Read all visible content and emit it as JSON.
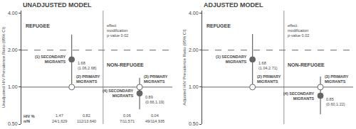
{
  "chart_data": [
    {
      "type": "scatter",
      "title": "UNADJUSTED MODEL",
      "y_label": "Unadjusted HIV Prevalence Ratio (95% CI)",
      "log": "y",
      "ylim": [
        0.5,
        4.2
      ],
      "yticks": [
        {
          "value": 0.5,
          "label": "0.50"
        },
        {
          "value": 1.0,
          "label": "1.00"
        },
        {
          "value": 2.0,
          "label": "2.00"
        },
        {
          "value": 4.0,
          "label": "4.00"
        }
      ],
      "tick_labels": "y",
      "grid": false,
      "color": "#666666",
      "reference_lines": [
        {
          "value": 1.0,
          "line_style": "solid"
        },
        {
          "value": 2.0,
          "line_style": "dashed"
        }
      ],
      "groups": [
        {
          "label": "REFUGEE",
          "points": [
            {
              "label": "(1) SECONDARY\nMIGRANTS",
              "value": 1.68,
              "value_label": "1.68\n(1.06,2.68)",
              "ci_low": 1.06,
              "ci_high": 2.68,
              "marker": "filled",
              "color": "#666666",
              "hiv_percent": 1.47,
              "hiv_n_over_N": "24/1,629"
            },
            {
              "label": "(2) PRIMARY\nMIGRANTS",
              "value": 1.0,
              "ci_low": null,
              "ci_high": null,
              "marker": "open",
              "color": "#ffffff",
              "hiv_percent": 0.82,
              "hiv_n_over_N": "112/13,640"
            }
          ]
        },
        {
          "label": "NON-REFUGEE",
          "points": [
            {
              "label": "(4) SECONDARY\nMIGRANTS",
              "value": 0.89,
              "value_label": "0.89\n(0.66,1.19)",
              "ci_low": 0.66,
              "ci_high": 1.19,
              "marker": "filled",
              "color": "#666666",
              "hiv_percent": 0.06,
              "hiv_n_over_N": "7/11,571"
            },
            {
              "label": "(3) PRIMARY\nMIGRANTS",
              "value": 1.0,
              "ci_low": null,
              "ci_high": null,
              "marker": "open",
              "color": "#ffffff",
              "hiv_percent": 0.04,
              "hiv_n_over_N": "49/114,935"
            }
          ]
        }
      ],
      "annotations": [
        "effect\nmodification\np-value 0.02"
      ],
      "hiv_header": "HIV %\nn/N"
    },
    {
      "type": "scatter",
      "title": "ADJUSTED MODEL",
      "y_label": "Adjusted HIV Prevalence Ratio (95% CI)",
      "log": "y",
      "ylim": [
        0.5,
        4.2
      ],
      "yticks": [
        {
          "value": 0.5,
          "label": "0.50"
        },
        {
          "value": 1.0,
          "label": "1.00"
        },
        {
          "value": 2.0,
          "label": "2.00"
        },
        {
          "value": 4.0,
          "label": "4.00"
        }
      ],
      "tick_labels": "y",
      "grid": false,
      "color": "#666666",
      "reference_lines": [
        {
          "value": 1.0,
          "line_style": "solid"
        },
        {
          "value": 2.0,
          "line_style": "dashed"
        }
      ],
      "groups": [
        {
          "label": "REFUGEE",
          "points": [
            {
              "label": "(1) SECONDARY\nMIGRANTS",
              "value": 1.68,
              "value_label": "1.68\n(1.04,2.71)",
              "ci_low": 1.04,
              "ci_high": 2.71,
              "marker": "filled",
              "color": "#666666"
            },
            {
              "label": "(2) PRIMARY\nMIGRANTS",
              "value": 1.0,
              "ci_low": null,
              "ci_high": null,
              "marker": "open",
              "color": "#ffffff"
            }
          ]
        },
        {
          "label": "NON-REFUGEE",
          "points": [
            {
              "label": "(4) SECONDARY\nMIGRANTS",
              "value": 0.85,
              "value_label": "0.85\n(0.60,1.22)",
              "ci_low": 0.6,
              "ci_high": 1.22,
              "marker": "filled",
              "color": "#666666"
            },
            {
              "label": "(3) PRIMARY\nMIGRANTS",
              "value": 1.0,
              "ci_low": null,
              "ci_high": null,
              "marker": "open",
              "color": "#ffffff"
            }
          ]
        }
      ],
      "annotations": [
        "effect\nmodification\np-value 0.02"
      ]
    }
  ]
}
